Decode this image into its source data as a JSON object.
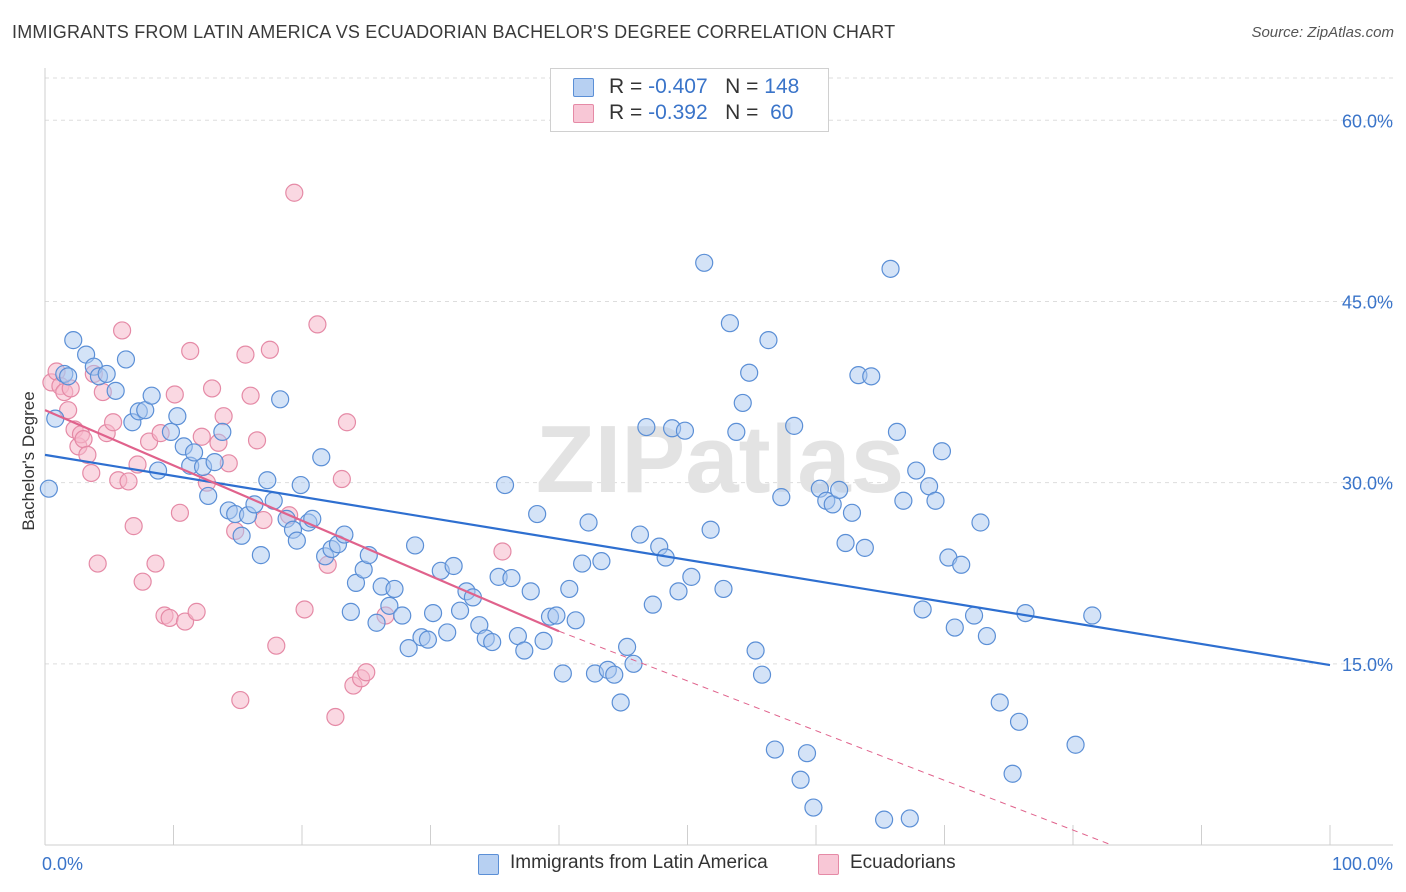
{
  "title": "IMMIGRANTS FROM LATIN AMERICA VS ECUADORIAN BACHELOR'S DEGREE CORRELATION CHART",
  "source": "Source: ZipAtlas.com",
  "watermark": "ZIPatlas",
  "legend": {
    "series1": {
      "r_label": "R =",
      "r_value": "-0.407",
      "n_label": "N =",
      "n_value": "148"
    },
    "series2": {
      "r_label": "R =",
      "r_value": "-0.392",
      "n_label": "N =",
      "n_value": "60"
    }
  },
  "colors": {
    "blue_fill": "#a9c8f0",
    "blue_stroke": "#5b8fd6",
    "blue_line": "#2e6fd0",
    "pink_fill": "#f5b8cb",
    "pink_stroke": "#e58aa6",
    "pink_line": "#e0628c",
    "axis_text": "#3a74c9",
    "grid": "#dddddd"
  },
  "chart_data": {
    "type": "scatter",
    "title": "IMMIGRANTS FROM LATIN AMERICA VS ECUADORIAN BACHELOR'S DEGREE CORRELATION CHART",
    "xlabel": "",
    "ylabel": "Bachelor's Degree",
    "xlim": [
      0,
      100
    ],
    "ylim": [
      0,
      63.5
    ],
    "x_tick_labels": [
      "0.0%",
      "100.0%"
    ],
    "y_ticks": [
      15,
      30,
      45,
      60
    ],
    "y_tick_labels": [
      "15.0%",
      "30.0%",
      "45.0%",
      "60.0%"
    ],
    "grid": true,
    "legend_position": "top-center",
    "series": [
      {
        "name": "Immigrants from Latin America",
        "r": -0.407,
        "n": 148,
        "trend": {
          "x": [
            0,
            100
          ],
          "y": [
            32.3,
            14.9
          ]
        },
        "points": [
          [
            0.3,
            29.5
          ],
          [
            0.8,
            35.3
          ],
          [
            1.5,
            39.0
          ],
          [
            1.8,
            38.8
          ],
          [
            2.2,
            41.8
          ],
          [
            3.2,
            40.6
          ],
          [
            3.8,
            39.6
          ],
          [
            4.2,
            38.8
          ],
          [
            4.8,
            39.0
          ],
          [
            5.5,
            37.6
          ],
          [
            6.3,
            40.2
          ],
          [
            6.8,
            35.0
          ],
          [
            7.3,
            35.9
          ],
          [
            7.8,
            36.0
          ],
          [
            8.3,
            37.2
          ],
          [
            8.8,
            31.0
          ],
          [
            9.8,
            34.2
          ],
          [
            10.3,
            35.5
          ],
          [
            10.8,
            33.0
          ],
          [
            11.3,
            31.4
          ],
          [
            11.6,
            32.5
          ],
          [
            12.3,
            31.3
          ],
          [
            12.7,
            28.9
          ],
          [
            13.2,
            31.7
          ],
          [
            13.8,
            34.2
          ],
          [
            14.3,
            27.7
          ],
          [
            14.8,
            27.4
          ],
          [
            15.3,
            25.6
          ],
          [
            15.8,
            27.3
          ],
          [
            16.3,
            28.2
          ],
          [
            16.8,
            24.0
          ],
          [
            17.3,
            30.2
          ],
          [
            17.8,
            28.5
          ],
          [
            18.3,
            36.9
          ],
          [
            18.8,
            27.0
          ],
          [
            19.3,
            26.1
          ],
          [
            19.6,
            25.2
          ],
          [
            19.9,
            29.8
          ],
          [
            20.5,
            26.7
          ],
          [
            20.8,
            27.0
          ],
          [
            21.5,
            32.1
          ],
          [
            21.8,
            23.9
          ],
          [
            22.3,
            24.5
          ],
          [
            22.8,
            24.9
          ],
          [
            23.3,
            25.7
          ],
          [
            23.8,
            19.3
          ],
          [
            24.2,
            21.7
          ],
          [
            24.8,
            22.8
          ],
          [
            25.2,
            24.0
          ],
          [
            25.8,
            18.4
          ],
          [
            26.2,
            21.4
          ],
          [
            26.8,
            19.8
          ],
          [
            27.2,
            21.2
          ],
          [
            27.8,
            19.0
          ],
          [
            28.3,
            16.3
          ],
          [
            28.8,
            24.8
          ],
          [
            29.3,
            17.2
          ],
          [
            29.8,
            17.0
          ],
          [
            30.2,
            19.2
          ],
          [
            30.8,
            22.7
          ],
          [
            31.3,
            17.6
          ],
          [
            31.8,
            23.1
          ],
          [
            32.3,
            19.4
          ],
          [
            32.8,
            21.0
          ],
          [
            33.3,
            20.5
          ],
          [
            33.8,
            18.2
          ],
          [
            34.3,
            17.1
          ],
          [
            34.8,
            16.8
          ],
          [
            35.3,
            22.2
          ],
          [
            35.8,
            29.8
          ],
          [
            36.3,
            22.1
          ],
          [
            36.8,
            17.3
          ],
          [
            37.3,
            16.1
          ],
          [
            37.8,
            21.0
          ],
          [
            38.3,
            27.4
          ],
          [
            38.8,
            16.9
          ],
          [
            39.3,
            18.9
          ],
          [
            39.8,
            19.0
          ],
          [
            40.3,
            14.2
          ],
          [
            40.8,
            21.2
          ],
          [
            41.3,
            18.6
          ],
          [
            41.8,
            23.3
          ],
          [
            42.3,
            26.7
          ],
          [
            42.8,
            14.2
          ],
          [
            43.3,
            23.5
          ],
          [
            43.8,
            14.5
          ],
          [
            44.3,
            14.1
          ],
          [
            44.8,
            11.8
          ],
          [
            45.3,
            16.4
          ],
          [
            45.8,
            15.0
          ],
          [
            46.3,
            25.7
          ],
          [
            46.8,
            34.6
          ],
          [
            47.3,
            19.9
          ],
          [
            47.8,
            24.7
          ],
          [
            48.3,
            23.8
          ],
          [
            48.8,
            34.5
          ],
          [
            49.3,
            21.0
          ],
          [
            49.8,
            34.3
          ],
          [
            50.3,
            22.2
          ],
          [
            51.3,
            48.2
          ],
          [
            51.8,
            26.1
          ],
          [
            52.8,
            21.2
          ],
          [
            53.3,
            43.2
          ],
          [
            53.8,
            34.2
          ],
          [
            54.3,
            36.6
          ],
          [
            54.8,
            39.1
          ],
          [
            55.3,
            16.1
          ],
          [
            55.8,
            14.1
          ],
          [
            56.3,
            41.8
          ],
          [
            56.8,
            7.9
          ],
          [
            57.3,
            28.8
          ],
          [
            58.3,
            34.7
          ],
          [
            58.8,
            5.4
          ],
          [
            59.3,
            7.6
          ],
          [
            59.8,
            3.1
          ],
          [
            60.3,
            29.5
          ],
          [
            60.8,
            28.5
          ],
          [
            61.3,
            28.2
          ],
          [
            61.8,
            29.4
          ],
          [
            62.3,
            25.0
          ],
          [
            62.8,
            27.5
          ],
          [
            63.3,
            38.9
          ],
          [
            63.8,
            24.6
          ],
          [
            64.3,
            38.8
          ],
          [
            65.3,
            2.1
          ],
          [
            65.8,
            47.7
          ],
          [
            66.3,
            34.2
          ],
          [
            66.8,
            28.5
          ],
          [
            67.3,
            2.2
          ],
          [
            67.8,
            31.0
          ],
          [
            68.3,
            19.5
          ],
          [
            68.8,
            29.7
          ],
          [
            69.3,
            28.5
          ],
          [
            69.8,
            32.6
          ],
          [
            70.3,
            23.8
          ],
          [
            70.8,
            18.0
          ],
          [
            71.3,
            23.2
          ],
          [
            72.3,
            19.0
          ],
          [
            72.8,
            26.7
          ],
          [
            73.3,
            17.3
          ],
          [
            74.3,
            11.8
          ],
          [
            75.3,
            5.9
          ],
          [
            75.8,
            10.2
          ],
          [
            76.3,
            19.2
          ],
          [
            80.2,
            8.3
          ],
          [
            81.5,
            19.0
          ]
        ]
      },
      {
        "name": "Ecuadorians",
        "r": -0.392,
        "n": 60,
        "trend_solid": {
          "x": [
            0,
            40
          ],
          "y": [
            36.0,
            17.7
          ]
        },
        "trend_dashed": {
          "x": [
            40,
            83
          ],
          "y": [
            17.7,
            -1.9
          ]
        },
        "points": [
          [
            0.5,
            38.3
          ],
          [
            0.9,
            39.2
          ],
          [
            1.2,
            38.0
          ],
          [
            1.5,
            37.5
          ],
          [
            1.8,
            36.0
          ],
          [
            2.0,
            37.8
          ],
          [
            2.3,
            34.4
          ],
          [
            2.6,
            33.0
          ],
          [
            2.8,
            34.0
          ],
          [
            3.0,
            33.6
          ],
          [
            3.3,
            32.3
          ],
          [
            3.6,
            30.8
          ],
          [
            3.8,
            39.0
          ],
          [
            4.1,
            23.3
          ],
          [
            4.5,
            37.5
          ],
          [
            4.8,
            34.1
          ],
          [
            5.3,
            35.0
          ],
          [
            5.7,
            30.2
          ],
          [
            6.0,
            42.6
          ],
          [
            6.5,
            30.1
          ],
          [
            6.9,
            26.4
          ],
          [
            7.2,
            31.5
          ],
          [
            7.6,
            21.8
          ],
          [
            8.1,
            33.4
          ],
          [
            8.6,
            23.3
          ],
          [
            9.0,
            34.1
          ],
          [
            9.3,
            19.0
          ],
          [
            9.7,
            18.8
          ],
          [
            10.1,
            37.3
          ],
          [
            10.5,
            27.5
          ],
          [
            10.9,
            18.5
          ],
          [
            11.3,
            40.9
          ],
          [
            11.8,
            19.3
          ],
          [
            12.2,
            33.8
          ],
          [
            12.6,
            30.0
          ],
          [
            13.0,
            37.8
          ],
          [
            13.5,
            33.3
          ],
          [
            13.9,
            35.5
          ],
          [
            14.3,
            31.6
          ],
          [
            14.8,
            26.0
          ],
          [
            15.2,
            12.0
          ],
          [
            15.6,
            40.6
          ],
          [
            16.0,
            37.2
          ],
          [
            16.5,
            33.5
          ],
          [
            17.0,
            26.9
          ],
          [
            17.5,
            41.0
          ],
          [
            18.0,
            16.5
          ],
          [
            19.0,
            27.3
          ],
          [
            19.4,
            54.0
          ],
          [
            20.2,
            19.5
          ],
          [
            21.2,
            43.1
          ],
          [
            22.0,
            23.2
          ],
          [
            22.6,
            10.6
          ],
          [
            23.1,
            30.3
          ],
          [
            23.5,
            35.0
          ],
          [
            24.0,
            13.2
          ],
          [
            24.6,
            13.8
          ],
          [
            25.0,
            14.3
          ],
          [
            26.5,
            19.0
          ],
          [
            35.6,
            24.3
          ]
        ]
      }
    ]
  }
}
